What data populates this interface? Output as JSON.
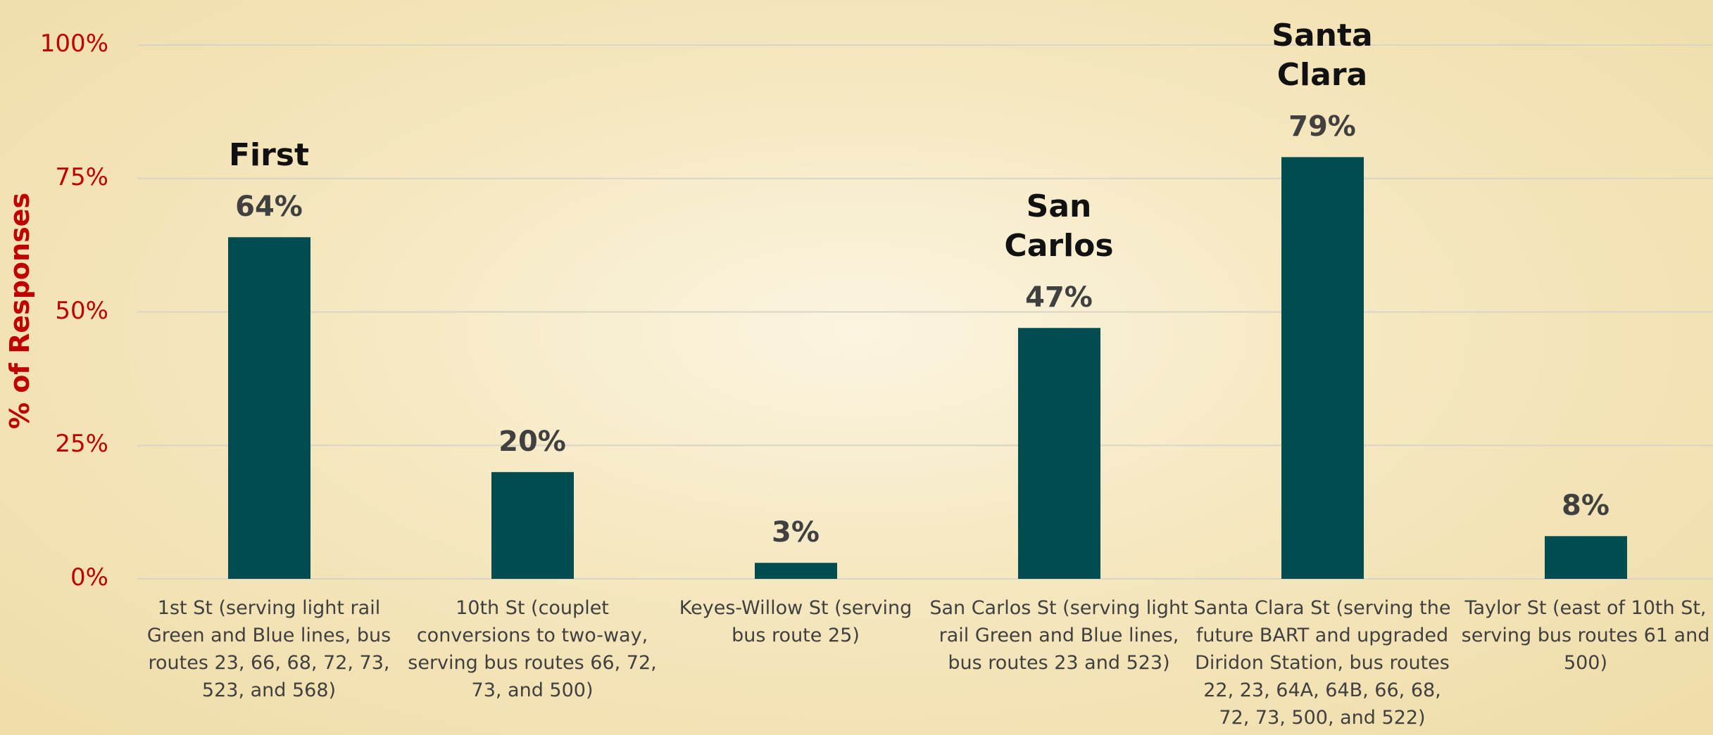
{
  "chart_data": {
    "type": "bar",
    "y_label": "% of Responses",
    "categories": [
      "1st St (serving light rail Green and Blue lines, bus routes 23, 66, 68, 72, 73, 523, and 568)",
      "10th St (couplet conversions to two-way, serving bus routes 66, 72, 73, and 500)",
      "Keyes-Willow St (serving bus route 25)",
      "San Carlos St (serving light rail Green and Blue lines, bus routes 23 and 523)",
      "Santa Clara St (serving the future BART and upgraded Diridon Station, bus routes 22, 23, 64A, 64B, 66, 68, 72, 73, 500, and 522)",
      "Taylor St (east of 10th St, serving bus routes 61 and 500)"
    ],
    "values": [
      64,
      20,
      3,
      47,
      79,
      8
    ],
    "value_labels": [
      "64%",
      "20%",
      "3%",
      "47%",
      "79%",
      "8%"
    ],
    "bar_annotations": [
      "First",
      null,
      null,
      "San Carlos",
      "Santa Clara",
      null
    ],
    "color": "#004d51",
    "ylim": [
      0,
      100
    ],
    "yticks": [
      {
        "value": 0,
        "label": "0%"
      },
      {
        "value": 25,
        "label": "25%"
      },
      {
        "value": 50,
        "label": "50%"
      },
      {
        "value": 75,
        "label": "75%"
      },
      {
        "value": 100,
        "label": "100%"
      }
    ],
    "grid": true
  }
}
